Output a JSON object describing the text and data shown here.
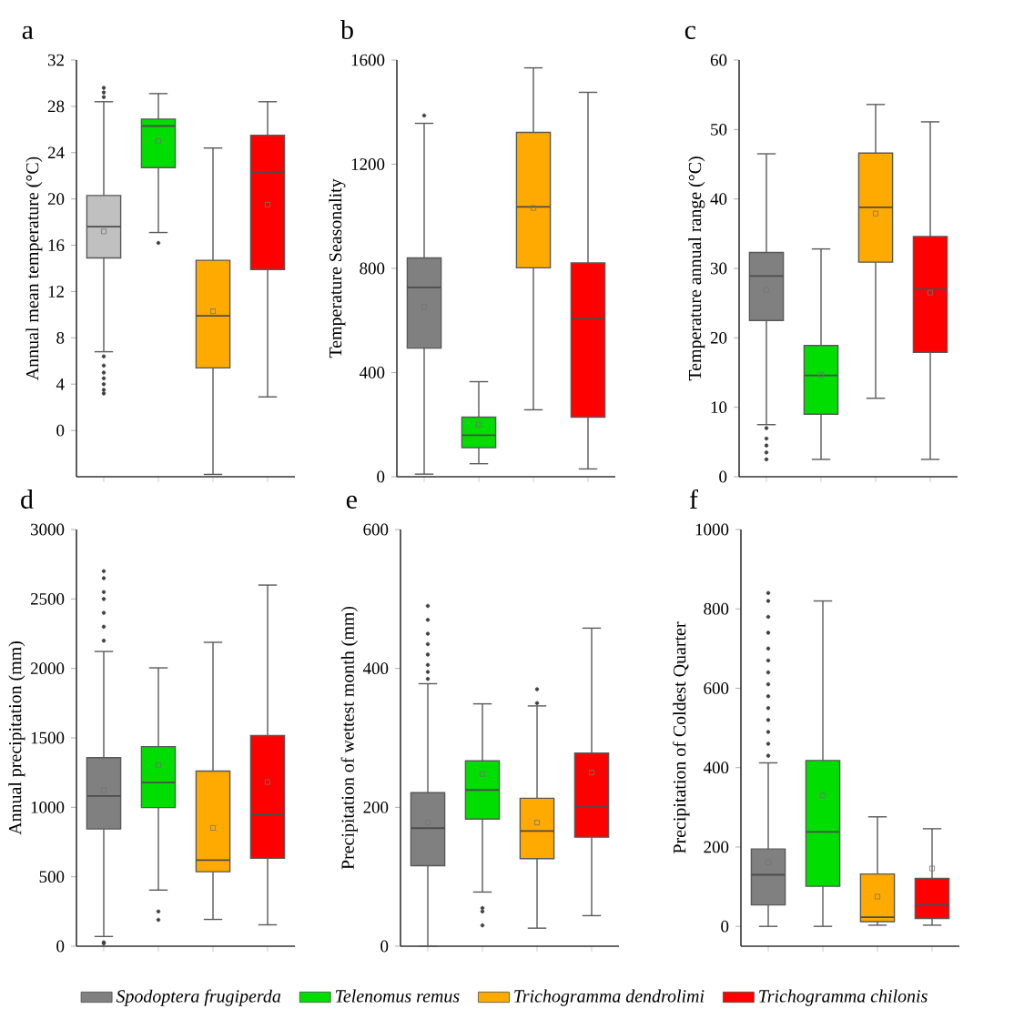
{
  "chart_data": [
    {
      "type": "box",
      "title": "a",
      "ylabel": "Annual mean temperature (°C)",
      "categories": [
        null,
        null,
        null,
        null
      ],
      "ylim": [
        -4,
        32
      ],
      "yticks": [
        {
          "value": 0,
          "label": "0"
        },
        {
          "value": 4,
          "label": "4"
        },
        {
          "value": 8,
          "label": "8"
        },
        {
          "value": 12,
          "label": "12"
        },
        {
          "value": 16,
          "label": "16"
        },
        {
          "value": 20,
          "label": "20"
        },
        {
          "value": 24,
          "label": "24"
        },
        {
          "value": 28,
          "label": "28"
        },
        {
          "value": 32,
          "label": "32"
        }
      ],
      "series": [
        {
          "color": "#c0c0c0",
          "boxes": [
            {
              "low": 6.8,
              "q1": 14.9,
              "median": 17.6,
              "q3": 20.3,
              "high": 28.4,
              "mean": 17.2,
              "outliers": [
                28.8,
                29.2,
                29.6,
                6.4,
                5.6,
                5.0,
                4.5,
                4.0,
                3.5,
                3.2
              ]
            },
            null,
            null,
            null
          ]
        },
        {
          "color": "#00dd00",
          "boxes": [
            null,
            {
              "low": 17.1,
              "q1": 22.7,
              "median": 26.3,
              "q3": 26.9,
              "high": 29.1,
              "mean": 25.0,
              "outliers": [
                16.2
              ]
            },
            null,
            null
          ]
        },
        {
          "color": "#ffaa00",
          "boxes": [
            null,
            null,
            {
              "low": -3.8,
              "q1": 5.4,
              "median": 9.9,
              "q3": 14.7,
              "high": 24.4,
              "mean": 10.3
            },
            null
          ]
        },
        {
          "color": "#ff0000",
          "boxes": [
            null,
            null,
            null,
            {
              "low": 2.9,
              "q1": 13.9,
              "median": 22.3,
              "q3": 25.5,
              "high": 28.4,
              "mean": 19.5
            }
          ]
        }
      ]
    },
    {
      "type": "box",
      "title": "b",
      "ylabel": "Temperature Seasonality",
      "categories": [
        null,
        null,
        null,
        null
      ],
      "ylim": [
        0,
        1600
      ],
      "yticks": [
        {
          "value": 0,
          "label": "0"
        },
        {
          "value": 400,
          "label": "400"
        },
        {
          "value": 800,
          "label": "800"
        },
        {
          "value": 1200,
          "label": "1200"
        },
        {
          "value": 1600,
          "label": "1600"
        }
      ],
      "series": [
        {
          "color": "#808080",
          "boxes": [
            {
              "low": 10,
              "q1": 494,
              "median": 727,
              "q3": 840,
              "high": 1357,
              "mean": 653,
              "outliers": [
                1387
              ]
            },
            null,
            null,
            null
          ]
        },
        {
          "color": "#00dd00",
          "boxes": [
            null,
            {
              "low": 50,
              "q1": 112,
              "median": 159,
              "q3": 229,
              "high": 365,
              "mean": 200
            },
            null,
            null
          ]
        },
        {
          "color": "#ffaa00",
          "boxes": [
            null,
            null,
            {
              "low": 257,
              "q1": 802,
              "median": 1036,
              "q3": 1322,
              "high": 1570,
              "mean": 1032
            },
            null
          ]
        },
        {
          "color": "#ff0000",
          "boxes": [
            null,
            null,
            null,
            {
              "low": 30,
              "q1": 229,
              "median": 608,
              "q3": 821,
              "high": 1476
            }
          ]
        }
      ]
    },
    {
      "type": "box",
      "title": "c",
      "ylabel": "Temperature annual range (°C)",
      "categories": [
        null,
        null,
        null,
        null
      ],
      "ylim": [
        0,
        60
      ],
      "yticks": [
        {
          "value": 0,
          "label": "0"
        },
        {
          "value": 10,
          "label": "10"
        },
        {
          "value": 20,
          "label": "20"
        },
        {
          "value": 30,
          "label": "30"
        },
        {
          "value": 40,
          "label": "40"
        },
        {
          "value": 50,
          "label": "50"
        },
        {
          "value": 60,
          "label": "60"
        }
      ],
      "series": [
        {
          "color": "#808080",
          "boxes": [
            {
              "low": 7.5,
              "q1": 22.5,
              "median": 28.9,
              "q3": 32.3,
              "high": 46.5,
              "mean": 26.9,
              "outliers": [
                7.0,
                5.5,
                4.5,
                3.5,
                2.5
              ]
            },
            null,
            null,
            null
          ]
        },
        {
          "color": "#00dd00",
          "boxes": [
            null,
            {
              "low": 2.5,
              "q1": 9.0,
              "median": 14.6,
              "q3": 18.9,
              "high": 32.8,
              "mean": 14.7
            },
            null,
            null
          ]
        },
        {
          "color": "#ffaa00",
          "boxes": [
            null,
            null,
            {
              "low": 11.3,
              "q1": 30.9,
              "median": 38.8,
              "q3": 46.6,
              "high": 53.6,
              "mean": 37.9
            },
            null
          ]
        },
        {
          "color": "#ff0000",
          "boxes": [
            null,
            null,
            null,
            {
              "low": 2.5,
              "q1": 17.9,
              "median": 27.0,
              "q3": 34.6,
              "high": 51.1,
              "mean": 26.5
            }
          ]
        }
      ]
    },
    {
      "type": "box",
      "title": "d",
      "ylabel": "Annual precipitation (mm)",
      "categories": [
        null,
        null,
        null,
        null
      ],
      "ylim": [
        0,
        3000
      ],
      "yticks": [
        {
          "value": 0,
          "label": "0"
        },
        {
          "value": 500,
          "label": "500"
        },
        {
          "value": 1000,
          "label": "1000"
        },
        {
          "value": 1500,
          "label": "1500"
        },
        {
          "value": 2000,
          "label": "2000"
        },
        {
          "value": 2500,
          "label": "2500"
        },
        {
          "value": 3000,
          "label": "3000"
        }
      ],
      "series": [
        {
          "color": "#808080",
          "boxes": [
            {
              "low": 70,
              "q1": 844,
              "median": 1081,
              "q3": 1358,
              "high": 2122,
              "mean": 1125,
              "outliers": [
                2200,
                2300,
                2400,
                2500,
                2550,
                2650,
                2700,
                28,
                20
              ]
            },
            null,
            null,
            null
          ]
        },
        {
          "color": "#00dd00",
          "boxes": [
            null,
            {
              "low": 404,
              "q1": 998,
              "median": 1178,
              "q3": 1437,
              "high": 2004,
              "mean": 1305,
              "outliers": [
                250,
                190
              ]
            },
            null,
            null
          ]
        },
        {
          "color": "#ffaa00",
          "boxes": [
            null,
            null,
            {
              "low": 193,
              "q1": 536,
              "median": 620,
              "q3": 1261,
              "high": 2188,
              "mean": 852
            },
            null
          ]
        },
        {
          "color": "#ff0000",
          "boxes": [
            null,
            null,
            null,
            {
              "low": 154,
              "q1": 633,
              "median": 949,
              "q3": 1516,
              "high": 2600,
              "mean": 1182
            }
          ]
        }
      ]
    },
    {
      "type": "box",
      "title": "e",
      "ylabel": "Precipitation of wettest month (mm)",
      "categories": [
        null,
        null,
        null,
        null
      ],
      "ylim": [
        0,
        600
      ],
      "yticks": [
        {
          "value": 0,
          "label": "0"
        },
        {
          "value": 200,
          "label": "200"
        },
        {
          "value": 400,
          "label": "400"
        },
        {
          "value": 600,
          "label": "600"
        }
      ],
      "series": [
        {
          "color": "#808080",
          "boxes": [
            {
              "low": 0,
              "q1": 116,
              "median": 170,
              "q3": 221,
              "high": 378,
              "mean": 178,
              "outliers": [
                385,
                395,
                405,
                420,
                435,
                450,
                470,
                490
              ]
            },
            null,
            null,
            null
          ]
        },
        {
          "color": "#00dd00",
          "boxes": [
            null,
            {
              "low": 78,
              "q1": 183,
              "median": 225,
              "q3": 267,
              "high": 349,
              "mean": 248,
              "outliers": [
                55,
                50,
                30
              ]
            },
            null,
            null
          ]
        },
        {
          "color": "#ffaa00",
          "boxes": [
            null,
            null,
            {
              "low": 26,
              "q1": 126,
              "median": 166,
              "q3": 213,
              "high": 346,
              "mean": 178,
              "outliers": [
                350,
                370
              ]
            },
            null
          ]
        },
        {
          "color": "#ff0000",
          "boxes": [
            null,
            null,
            null,
            {
              "low": 44,
              "q1": 157,
              "median": 202,
              "q3": 278,
              "high": 458,
              "mean": 250
            }
          ]
        }
      ]
    },
    {
      "type": "box",
      "title": "f",
      "ylabel": "Precipitation of Coldest Quarter",
      "categories": [
        null,
        null,
        null,
        null
      ],
      "ylim": [
        -50,
        1000
      ],
      "yticks": [
        {
          "value": 0,
          "label": "0"
        },
        {
          "value": 200,
          "label": "200"
        },
        {
          "value": 400,
          "label": "400"
        },
        {
          "value": 600,
          "label": "600"
        },
        {
          "value": 800,
          "label": "800"
        },
        {
          "value": 1000,
          "label": "1000"
        }
      ],
      "legend": "bottom",
      "series": [
        {
          "name": "Spodoptera frugiperda",
          "color": "#808080",
          "boxes": [
            {
              "low": 0,
              "q1": 54,
              "median": 130,
              "q3": 195,
              "high": 412,
              "mean": 161,
              "outliers": [
                430,
                460,
                490,
                520,
                550,
                580,
                610,
                640,
                670,
                700,
                740,
                780,
                820,
                840
              ]
            },
            null,
            null,
            null
          ]
        },
        {
          "name": "Telenomus remus",
          "color": "#00dd00",
          "boxes": [
            null,
            {
              "low": 0,
              "q1": 101,
              "median": 238,
              "q3": 418,
              "high": 820,
              "mean": 330
            },
            null,
            null
          ]
        },
        {
          "name": "Trichogramma dendrolimi",
          "color": "#ffaa00",
          "boxes": [
            null,
            null,
            {
              "low": 3,
              "q1": 12,
              "median": 23,
              "q3": 132,
              "high": 276,
              "mean": 75
            },
            null
          ]
        },
        {
          "name": "Trichogramma chilonis",
          "color": "#ff0000",
          "boxes": [
            null,
            null,
            null,
            {
              "low": 3,
              "q1": 20,
              "median": 54,
              "q3": 121,
              "high": 246,
              "mean": 146
            }
          ]
        }
      ]
    }
  ]
}
